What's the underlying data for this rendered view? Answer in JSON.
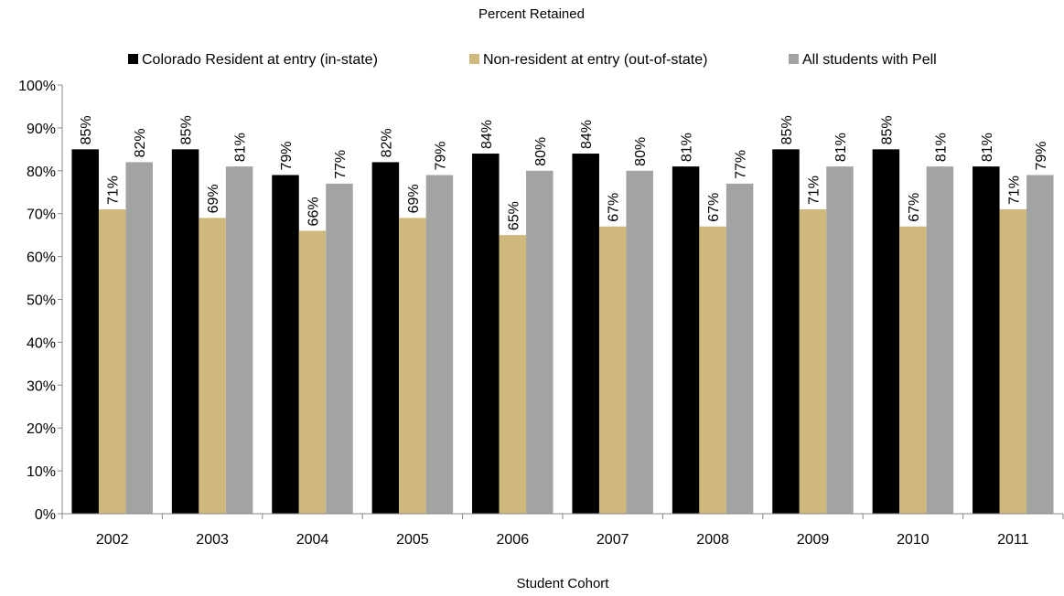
{
  "chart_data": {
    "type": "bar",
    "title": "Percent Retained",
    "xlabel": "Student Cohort",
    "ylabel": "",
    "ylim": [
      0,
      100
    ],
    "yticks": [
      "0%",
      "10%",
      "20%",
      "30%",
      "40%",
      "50%",
      "60%",
      "70%",
      "80%",
      "90%",
      "100%"
    ],
    "categories": [
      "2002",
      "2003",
      "2004",
      "2005",
      "2006",
      "2007",
      "2008",
      "2009",
      "2010",
      "2011"
    ],
    "legend_position": "top",
    "grid": false,
    "series": [
      {
        "name": "Colorado Resident at entry (in-state)",
        "color": "#000000",
        "values": [
          85,
          85,
          79,
          82,
          84,
          84,
          81,
          85,
          85,
          81
        ],
        "labels": [
          "85%",
          "85%",
          "79%",
          "82%",
          "84%",
          "84%",
          "81%",
          "85%",
          "85%",
          "81%"
        ]
      },
      {
        "name": "Non-resident at entry (out-of-state)",
        "color": "#CFB87C",
        "values": [
          71,
          69,
          66,
          69,
          65,
          67,
          67,
          71,
          67,
          71
        ],
        "labels": [
          "71%",
          "69%",
          "66%",
          "69%",
          "65%",
          "67%",
          "67%",
          "71%",
          "67%",
          "71%"
        ]
      },
      {
        "name": "All students with Pell",
        "color": "#A2A4A3",
        "values": [
          82,
          81,
          77,
          79,
          80,
          80,
          77,
          81,
          81,
          79
        ],
        "labels": [
          "82%",
          "81%",
          "77%",
          "79%",
          "80%",
          "80%",
          "77%",
          "81%",
          "81%",
          "79%"
        ]
      }
    ]
  }
}
